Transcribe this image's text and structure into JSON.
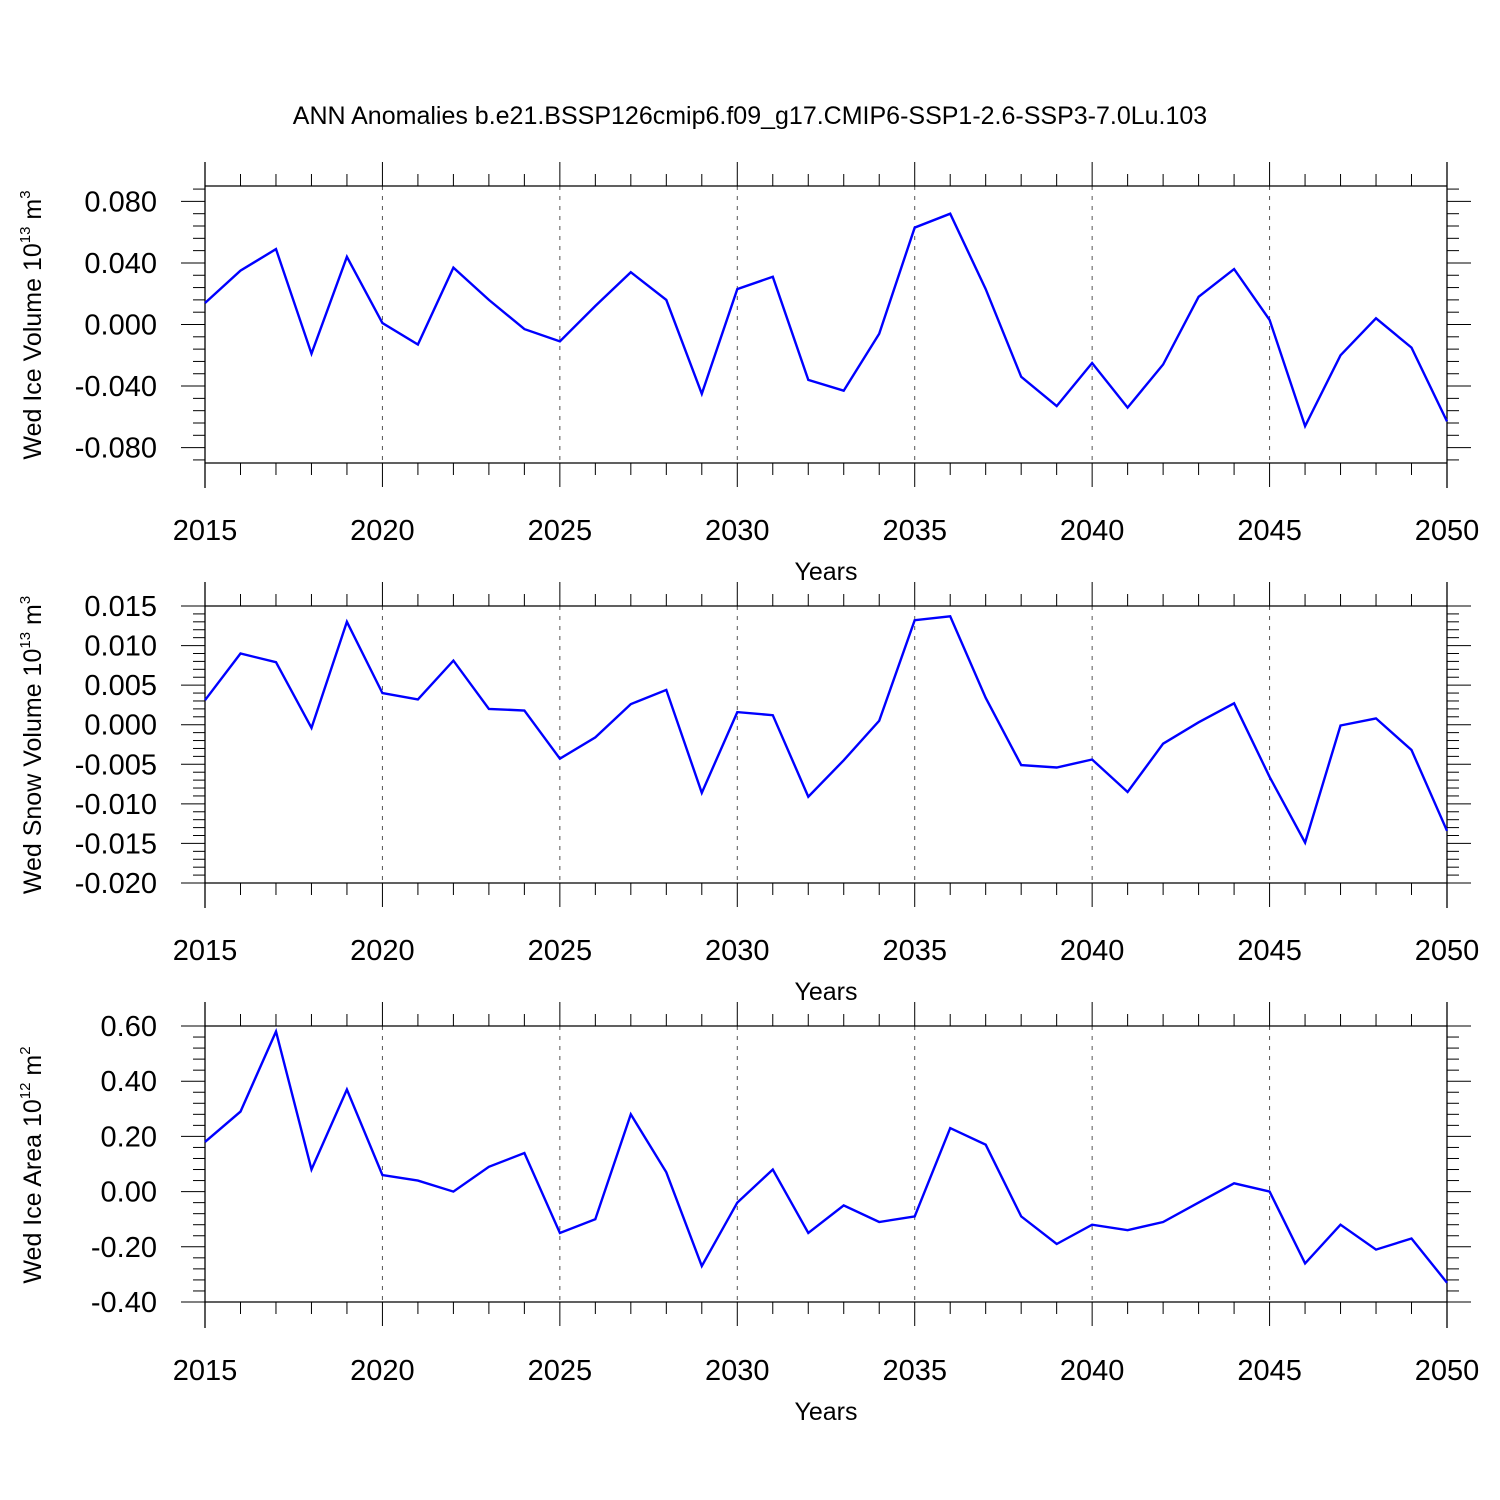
{
  "title": "ANN Anomalies b.e21.BSSP126cmip6.f09_g17.CMIP6-SSP1-2.6-SSP3-7.0Lu.103",
  "line_color": "#0000ff",
  "chart_data": [
    {
      "type": "line",
      "xlabel": "Years",
      "ylabel": {
        "text": "Wed Ice Volume 10",
        "exp": "13",
        "unit": " m",
        "unit_exp": "3"
      },
      "xlim": [
        2015,
        2050
      ],
      "ylim": [
        -0.09,
        0.09
      ],
      "yticks": [
        0.08,
        0.04,
        0.0,
        -0.04,
        -0.08
      ],
      "ytick_labels": [
        "0.080",
        "0.040",
        "0.000",
        "-0.040",
        "-0.080"
      ],
      "xticks": [
        2015,
        2020,
        2025,
        2030,
        2035,
        2040,
        2045,
        2050
      ],
      "xtick_labels": [
        "2015",
        "2020",
        "2025",
        "2030",
        "2035",
        "2040",
        "2045",
        "2050"
      ],
      "x": [
        2015,
        2016,
        2017,
        2018,
        2019,
        2020,
        2021,
        2022,
        2023,
        2024,
        2025,
        2026,
        2027,
        2028,
        2029,
        2030,
        2031,
        2032,
        2033,
        2034,
        2035,
        2036,
        2037,
        2038,
        2039,
        2040,
        2041,
        2042,
        2043,
        2044,
        2045,
        2046,
        2047,
        2048,
        2049,
        2050
      ],
      "y": [
        0.014,
        0.035,
        0.049,
        -0.019,
        0.044,
        0.001,
        -0.013,
        0.037,
        0.016,
        -0.003,
        -0.011,
        0.012,
        0.034,
        0.016,
        -0.045,
        0.023,
        0.031,
        -0.036,
        -0.043,
        -0.006,
        0.063,
        0.072,
        0.023,
        -0.034,
        -0.053,
        -0.025,
        -0.054,
        -0.026,
        0.018,
        0.036,
        0.003,
        -0.066,
        -0.02,
        0.004,
        -0.015,
        -0.063
      ]
    },
    {
      "type": "line",
      "xlabel": "Years",
      "ylabel": {
        "text": "Wed Snow Volume 10",
        "exp": "13",
        "unit": " m",
        "unit_exp": "3"
      },
      "xlim": [
        2015,
        2050
      ],
      "ylim": [
        -0.02,
        0.015
      ],
      "yticks": [
        0.015,
        0.01,
        0.005,
        0.0,
        -0.005,
        -0.01,
        -0.015,
        -0.02
      ],
      "ytick_labels": [
        "0.015",
        "0.010",
        "0.005",
        "0.000",
        "-0.005",
        "-0.010",
        "-0.015",
        "-0.020"
      ],
      "xticks": [
        2015,
        2020,
        2025,
        2030,
        2035,
        2040,
        2045,
        2050
      ],
      "xtick_labels": [
        "2015",
        "2020",
        "2025",
        "2030",
        "2035",
        "2040",
        "2045",
        "2050"
      ],
      "x": [
        2015,
        2016,
        2017,
        2018,
        2019,
        2020,
        2021,
        2022,
        2023,
        2024,
        2025,
        2026,
        2027,
        2028,
        2029,
        2030,
        2031,
        2032,
        2033,
        2034,
        2035,
        2036,
        2037,
        2038,
        2039,
        2040,
        2041,
        2042,
        2043,
        2044,
        2045,
        2046,
        2047,
        2048,
        2049,
        2050
      ],
      "y": [
        0.0031,
        0.009,
        0.0079,
        -0.0004,
        0.013,
        0.004,
        0.0032,
        0.0081,
        0.002,
        0.0018,
        -0.0043,
        -0.0016,
        0.0026,
        0.0044,
        -0.0086,
        0.0016,
        0.0012,
        -0.0091,
        -0.0045,
        0.0005,
        0.0132,
        0.0137,
        0.0034,
        -0.0051,
        -0.0054,
        -0.0044,
        -0.0085,
        -0.0024,
        0.0003,
        0.0027,
        -0.0066,
        -0.0149,
        -0.0001,
        0.0008,
        -0.0032,
        -0.0134
      ]
    },
    {
      "type": "line",
      "xlabel": "Years",
      "ylabel": {
        "text": "Wed Ice Area 10",
        "exp": "12",
        "unit": " m",
        "unit_exp": "2"
      },
      "xlim": [
        2015,
        2050
      ],
      "ylim": [
        -0.4,
        0.6
      ],
      "yticks": [
        0.6,
        0.4,
        0.2,
        0.0,
        -0.2,
        -0.4
      ],
      "ytick_labels": [
        "0.60",
        "0.40",
        "0.20",
        "0.00",
        "-0.20",
        "-0.40"
      ],
      "xticks": [
        2015,
        2020,
        2025,
        2030,
        2035,
        2040,
        2045,
        2050
      ],
      "xtick_labels": [
        "2015",
        "2020",
        "2025",
        "2030",
        "2035",
        "2040",
        "2045",
        "2050"
      ],
      "x": [
        2015,
        2016,
        2017,
        2018,
        2019,
        2020,
        2021,
        2022,
        2023,
        2024,
        2025,
        2026,
        2027,
        2028,
        2029,
        2030,
        2031,
        2032,
        2033,
        2034,
        2035,
        2036,
        2037,
        2038,
        2039,
        2040,
        2041,
        2042,
        2043,
        2044,
        2045,
        2046,
        2047,
        2048,
        2049,
        2050
      ],
      "y": [
        0.18,
        0.29,
        0.58,
        0.08,
        0.37,
        0.06,
        0.04,
        0.0,
        0.09,
        0.14,
        -0.15,
        -0.1,
        0.28,
        0.07,
        -0.27,
        -0.04,
        0.08,
        -0.15,
        -0.05,
        -0.11,
        -0.09,
        0.23,
        0.17,
        -0.09,
        -0.19,
        -0.12,
        -0.14,
        -0.11,
        -0.04,
        0.03,
        0.0,
        -0.26,
        -0.12,
        -0.21,
        -0.17,
        -0.33
      ]
    }
  ]
}
